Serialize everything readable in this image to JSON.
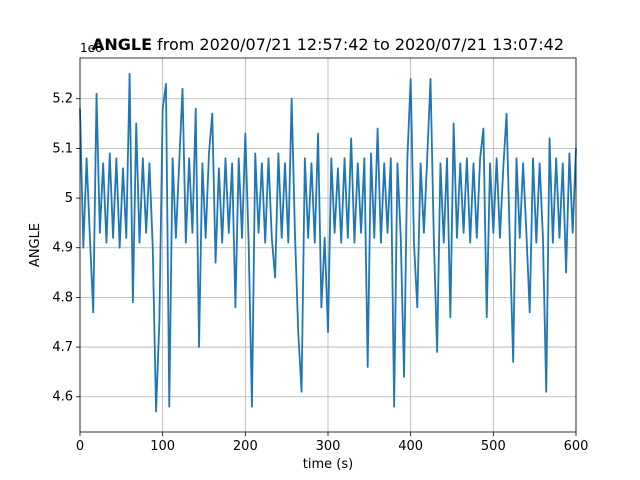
{
  "chart_data": {
    "type": "line",
    "title": {
      "variable": "ANGLE",
      "text": "from 2020/07/21 12:57:42 to 2020/07/21 13:07:42"
    },
    "offset_label": "1e6",
    "x_label": "time (s)",
    "y_label": "ANGLE",
    "xlim": [
      0,
      600
    ],
    "xticks": [
      0,
      100,
      200,
      300,
      400,
      500,
      600
    ],
    "ylim": [
      4.529,
      5.282
    ],
    "yticks": [
      4.6,
      4.7,
      4.8,
      4.9,
      5.0,
      5.1,
      5.2
    ],
    "grid": true,
    "x": [
      0,
      4,
      8,
      12,
      16,
      20,
      24,
      28,
      32,
      36,
      40,
      44,
      48,
      52,
      56,
      60,
      64,
      68,
      72,
      76,
      80,
      84,
      88,
      92,
      96,
      100,
      104,
      108,
      112,
      116,
      120,
      124,
      128,
      132,
      136,
      140,
      144,
      148,
      152,
      156,
      160,
      164,
      168,
      172,
      176,
      180,
      184,
      188,
      192,
      196,
      200,
      204,
      208,
      212,
      216,
      220,
      224,
      228,
      232,
      236,
      240,
      244,
      248,
      252,
      256,
      260,
      264,
      268,
      272,
      276,
      280,
      284,
      288,
      292,
      296,
      300,
      304,
      308,
      312,
      316,
      320,
      324,
      328,
      332,
      336,
      340,
      344,
      348,
      352,
      356,
      360,
      364,
      368,
      372,
      376,
      380,
      384,
      388,
      392,
      396,
      400,
      404,
      408,
      412,
      416,
      420,
      424,
      428,
      432,
      436,
      440,
      444,
      448,
      452,
      456,
      460,
      464,
      468,
      472,
      476,
      480,
      484,
      488,
      492,
      496,
      500,
      504,
      508,
      512,
      516,
      520,
      524,
      528,
      532,
      536,
      540,
      544,
      548,
      552,
      556,
      560,
      564,
      568,
      572,
      576,
      580,
      584,
      588,
      592,
      596,
      600
    ],
    "series": [
      {
        "name": "ANGLE",
        "color": "#1f77b4",
        "values": [
          5.18,
          4.9,
          5.08,
          4.92,
          4.77,
          5.21,
          4.93,
          5.07,
          4.91,
          5.09,
          4.92,
          5.08,
          4.9,
          5.06,
          4.92,
          5.25,
          4.79,
          5.15,
          4.91,
          5.08,
          4.93,
          5.07,
          4.9,
          4.57,
          4.75,
          5.18,
          5.23,
          4.58,
          5.08,
          4.92,
          5.07,
          5.22,
          4.91,
          5.08,
          4.93,
          5.18,
          4.7,
          5.07,
          4.92,
          5.09,
          5.17,
          4.87,
          5.06,
          4.91,
          5.08,
          4.93,
          5.07,
          4.78,
          5.08,
          4.92,
          5.13,
          4.91,
          4.58,
          5.09,
          4.93,
          5.07,
          4.91,
          5.08,
          4.92,
          4.84,
          5.09,
          4.92,
          5.07,
          4.91,
          5.2,
          4.93,
          4.73,
          4.61,
          5.08,
          4.92,
          5.07,
          4.91,
          5.13,
          4.78,
          4.92,
          4.73,
          5.08,
          4.93,
          5.06,
          4.91,
          5.08,
          4.92,
          5.12,
          4.91,
          5.07,
          4.93,
          5.08,
          4.66,
          5.09,
          4.92,
          5.14,
          4.91,
          5.07,
          4.93,
          5.08,
          4.58,
          5.07,
          4.92,
          4.64,
          5.08,
          5.24,
          4.91,
          4.78,
          5.07,
          4.93,
          5.08,
          5.24,
          4.92,
          4.69,
          5.07,
          4.91,
          5.08,
          4.76,
          5.15,
          4.92,
          5.07,
          4.93,
          5.08,
          4.91,
          5.07,
          4.92,
          5.08,
          5.14,
          4.76,
          5.07,
          4.93,
          5.08,
          4.92,
          5.06,
          5.17,
          4.91,
          4.67,
          5.08,
          4.92,
          5.07,
          4.93,
          4.77,
          5.08,
          4.91,
          5.07,
          4.92,
          4.61,
          5.12,
          4.91,
          5.08,
          4.92,
          5.07,
          4.85,
          5.09,
          4.93,
          5.1
        ]
      }
    ]
  }
}
